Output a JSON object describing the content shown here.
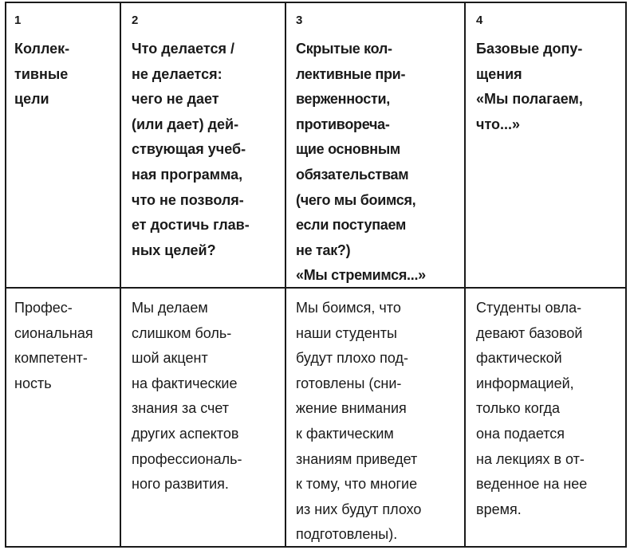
{
  "table": {
    "headers": [
      {
        "number": "1",
        "text": "Коллек-\nтивные\nцели"
      },
      {
        "number": "2",
        "text": "Что делается /\nне делается:\nчего не дает\n(или дает) дей-\nствующая учеб-\nная программа,\nчто не позволя-\nет достичь глав-\nных целей?"
      },
      {
        "number": "3",
        "text": "Скрытые кол-\nлективные при-\nверженности,\nпротивореча-\nщие основным\nобязательствам\n(чего мы боимся,\nесли поступаем\nне так?)\n«Мы стремимся...»"
      },
      {
        "number": "4",
        "text": "Базовые допу-\nщения\n«Мы полагаем,\nчто...»"
      }
    ],
    "row": [
      "Профес-\nсиональная\nкомпетент-\nность",
      "Мы делаем\nслишком боль-\nшой акцент\nна фактические\nзнания за счет\nдругих аспектов\nпрофессиональ-\nного развития.",
      "Мы боимся, что\nнаши студенты\nбудут плохо под-\nготовлены (сни-\nжение внимания\nк фактическим\nзнаниям приведет\nк тому, что многие\nиз них будут плохо\nподготовлены).",
      "Студенты овла-\nдевают базовой\nфактической\nинформацией,\nтолько когда\nона подается\nна лекциях в от-\nведенное на нее\nвремя."
    ]
  }
}
